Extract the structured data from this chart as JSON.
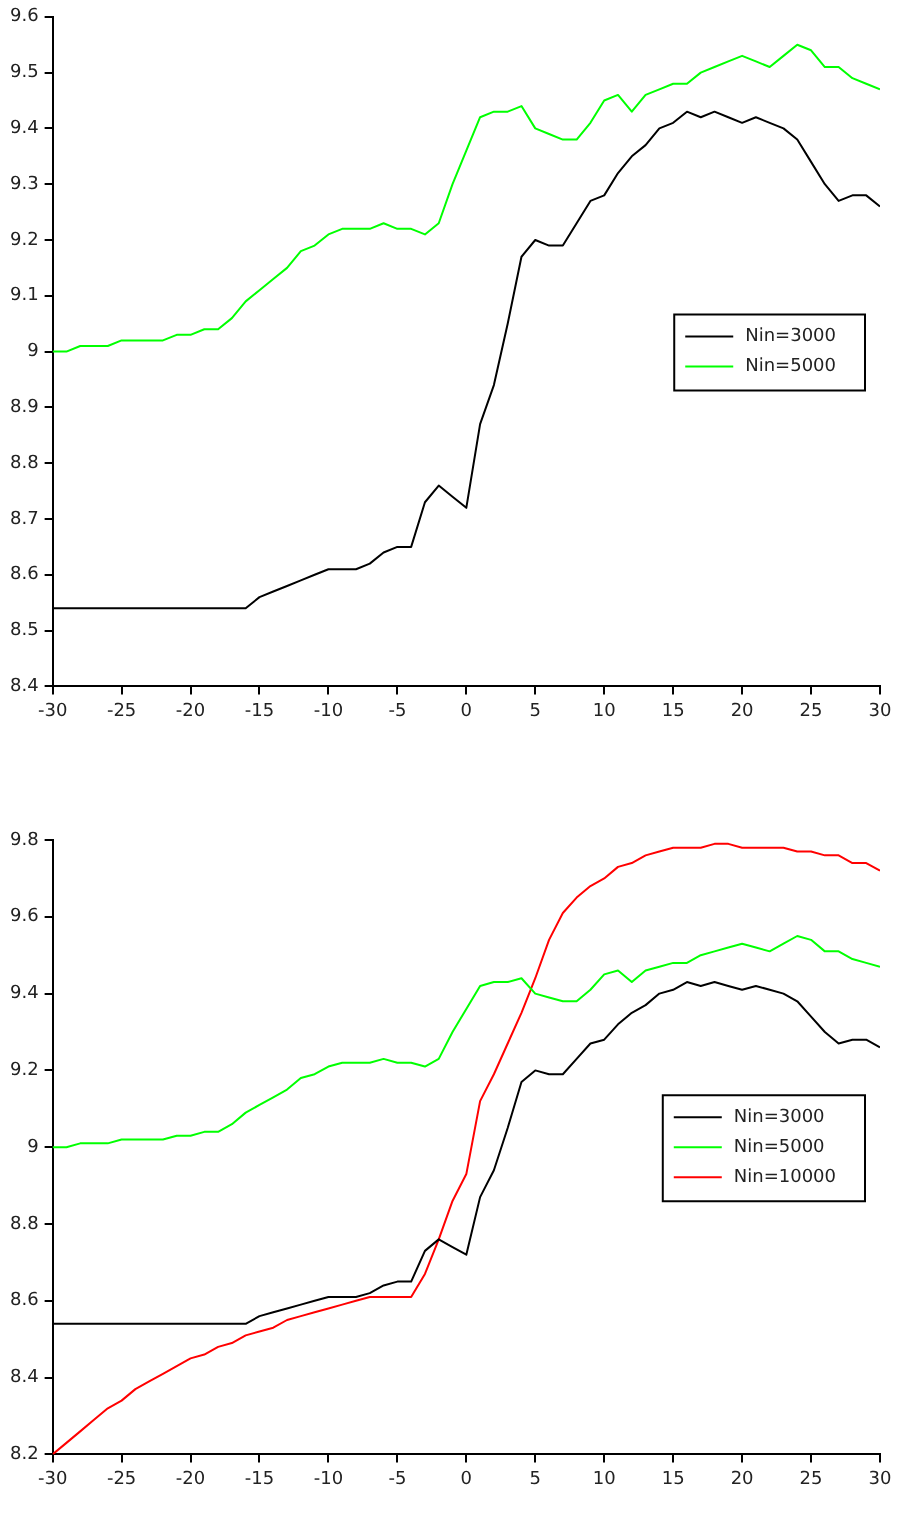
{
  "chart_data": [
    {
      "type": "line",
      "x": [
        -30,
        -29,
        -28,
        -27,
        -26,
        -25,
        -24,
        -23,
        -22,
        -21,
        -20,
        -19,
        -18,
        -17,
        -16,
        -15,
        -14,
        -13,
        -12,
        -11,
        -10,
        -9,
        -8,
        -7,
        -6,
        -5,
        -4,
        -3,
        -2,
        -1,
        0,
        1,
        2,
        3,
        4,
        5,
        6,
        7,
        8,
        9,
        10,
        11,
        12,
        13,
        14,
        15,
        16,
        17,
        18,
        19,
        20,
        21,
        22,
        23,
        24,
        25,
        26,
        27,
        28,
        29,
        30
      ],
      "series": [
        {
          "name": "Nin=3000",
          "color": "#000000",
          "values": [
            8.54,
            8.54,
            8.54,
            8.54,
            8.54,
            8.54,
            8.54,
            8.54,
            8.54,
            8.54,
            8.54,
            8.54,
            8.54,
            8.54,
            8.54,
            8.56,
            8.57,
            8.58,
            8.59,
            8.6,
            8.61,
            8.61,
            8.61,
            8.62,
            8.64,
            8.65,
            8.65,
            8.73,
            8.76,
            8.74,
            8.72,
            8.87,
            8.94,
            9.05,
            9.17,
            9.2,
            9.19,
            9.19,
            9.23,
            9.27,
            9.28,
            9.32,
            9.35,
            9.37,
            9.4,
            9.41,
            9.43,
            9.42,
            9.43,
            9.42,
            9.41,
            9.42,
            9.41,
            9.4,
            9.38,
            9.34,
            9.3,
            9.27,
            9.28,
            9.28,
            9.26
          ]
        },
        {
          "name": "Nin=5000",
          "color": "#00ff00",
          "values": [
            9.0,
            9.0,
            9.01,
            9.01,
            9.01,
            9.02,
            9.02,
            9.02,
            9.02,
            9.03,
            9.03,
            9.04,
            9.04,
            9.06,
            9.09,
            9.11,
            9.13,
            9.15,
            9.18,
            9.19,
            9.21,
            9.22,
            9.22,
            9.22,
            9.23,
            9.22,
            9.22,
            9.21,
            9.23,
            9.3,
            9.36,
            9.42,
            9.43,
            9.43,
            9.44,
            9.4,
            9.39,
            9.38,
            9.38,
            9.41,
            9.45,
            9.46,
            9.43,
            9.46,
            9.47,
            9.48,
            9.48,
            9.5,
            9.51,
            9.52,
            9.53,
            9.52,
            9.51,
            9.53,
            9.55,
            9.54,
            9.51,
            9.51,
            9.49,
            9.48,
            9.47
          ]
        }
      ],
      "xlim": [
        -30,
        30
      ],
      "xticks": [
        -30,
        -25,
        -20,
        -15,
        -10,
        -5,
        0,
        5,
        10,
        15,
        20,
        25,
        30
      ],
      "ylim": [
        8.4,
        9.6
      ],
      "yticks": [
        8.4,
        8.5,
        8.6,
        8.7,
        8.8,
        8.9,
        9,
        9.1,
        9.2,
        9.3,
        9.4,
        9.5,
        9.6
      ],
      "grid": false,
      "legend": "right",
      "marker": "none",
      "line_style": "solid"
    },
    {
      "type": "line",
      "x": [
        -30,
        -29,
        -28,
        -27,
        -26,
        -25,
        -24,
        -23,
        -22,
        -21,
        -20,
        -19,
        -18,
        -17,
        -16,
        -15,
        -14,
        -13,
        -12,
        -11,
        -10,
        -9,
        -8,
        -7,
        -6,
        -5,
        -4,
        -3,
        -2,
        -1,
        0,
        1,
        2,
        3,
        4,
        5,
        6,
        7,
        8,
        9,
        10,
        11,
        12,
        13,
        14,
        15,
        16,
        17,
        18,
        19,
        20,
        21,
        22,
        23,
        24,
        25,
        26,
        27,
        28,
        29,
        30
      ],
      "series": [
        {
          "name": "Nin=3000",
          "color": "#000000",
          "values": [
            8.54,
            8.54,
            8.54,
            8.54,
            8.54,
            8.54,
            8.54,
            8.54,
            8.54,
            8.54,
            8.54,
            8.54,
            8.54,
            8.54,
            8.54,
            8.56,
            8.57,
            8.58,
            8.59,
            8.6,
            8.61,
            8.61,
            8.61,
            8.62,
            8.64,
            8.65,
            8.65,
            8.73,
            8.76,
            8.74,
            8.72,
            8.87,
            8.94,
            9.05,
            9.17,
            9.2,
            9.19,
            9.19,
            9.23,
            9.27,
            9.28,
            9.32,
            9.35,
            9.37,
            9.4,
            9.41,
            9.43,
            9.42,
            9.43,
            9.42,
            9.41,
            9.42,
            9.41,
            9.4,
            9.38,
            9.34,
            9.3,
            9.27,
            9.28,
            9.28,
            9.26
          ]
        },
        {
          "name": "Nin=5000",
          "color": "#00ff00",
          "values": [
            9.0,
            9.0,
            9.01,
            9.01,
            9.01,
            9.02,
            9.02,
            9.02,
            9.02,
            9.03,
            9.03,
            9.04,
            9.04,
            9.06,
            9.09,
            9.11,
            9.13,
            9.15,
            9.18,
            9.19,
            9.21,
            9.22,
            9.22,
            9.22,
            9.23,
            9.22,
            9.22,
            9.21,
            9.23,
            9.3,
            9.36,
            9.42,
            9.43,
            9.43,
            9.44,
            9.4,
            9.39,
            9.38,
            9.38,
            9.41,
            9.45,
            9.46,
            9.43,
            9.46,
            9.47,
            9.48,
            9.48,
            9.5,
            9.51,
            9.52,
            9.53,
            9.52,
            9.51,
            9.53,
            9.55,
            9.54,
            9.51,
            9.51,
            9.49,
            9.48,
            9.47
          ]
        },
        {
          "name": "Nin=10000",
          "color": "#ff0000",
          "values": [
            8.2,
            8.23,
            8.26,
            8.29,
            8.32,
            8.34,
            8.37,
            8.39,
            8.41,
            8.43,
            8.45,
            8.46,
            8.48,
            8.49,
            8.51,
            8.52,
            8.53,
            8.55,
            8.56,
            8.57,
            8.58,
            8.59,
            8.6,
            8.61,
            8.61,
            8.61,
            8.61,
            8.67,
            8.76,
            8.86,
            8.93,
            9.12,
            9.19,
            9.27,
            9.35,
            9.44,
            9.54,
            9.61,
            9.65,
            9.68,
            9.7,
            9.73,
            9.74,
            9.76,
            9.77,
            9.78,
            9.78,
            9.78,
            9.79,
            9.79,
            9.78,
            9.78,
            9.78,
            9.78,
            9.77,
            9.77,
            9.76,
            9.76,
            9.74,
            9.74,
            9.72
          ]
        }
      ],
      "xlim": [
        -30,
        30
      ],
      "xticks": [
        -30,
        -25,
        -20,
        -15,
        -10,
        -5,
        0,
        5,
        10,
        15,
        20,
        25,
        30
      ],
      "ylim": [
        8.2,
        9.8
      ],
      "yticks": [
        8.2,
        8.4,
        8.6,
        8.8,
        9,
        9.2,
        9.4,
        9.6,
        9.8
      ],
      "grid": false,
      "legend": "right",
      "marker": "none",
      "line_style": "solid"
    }
  ]
}
